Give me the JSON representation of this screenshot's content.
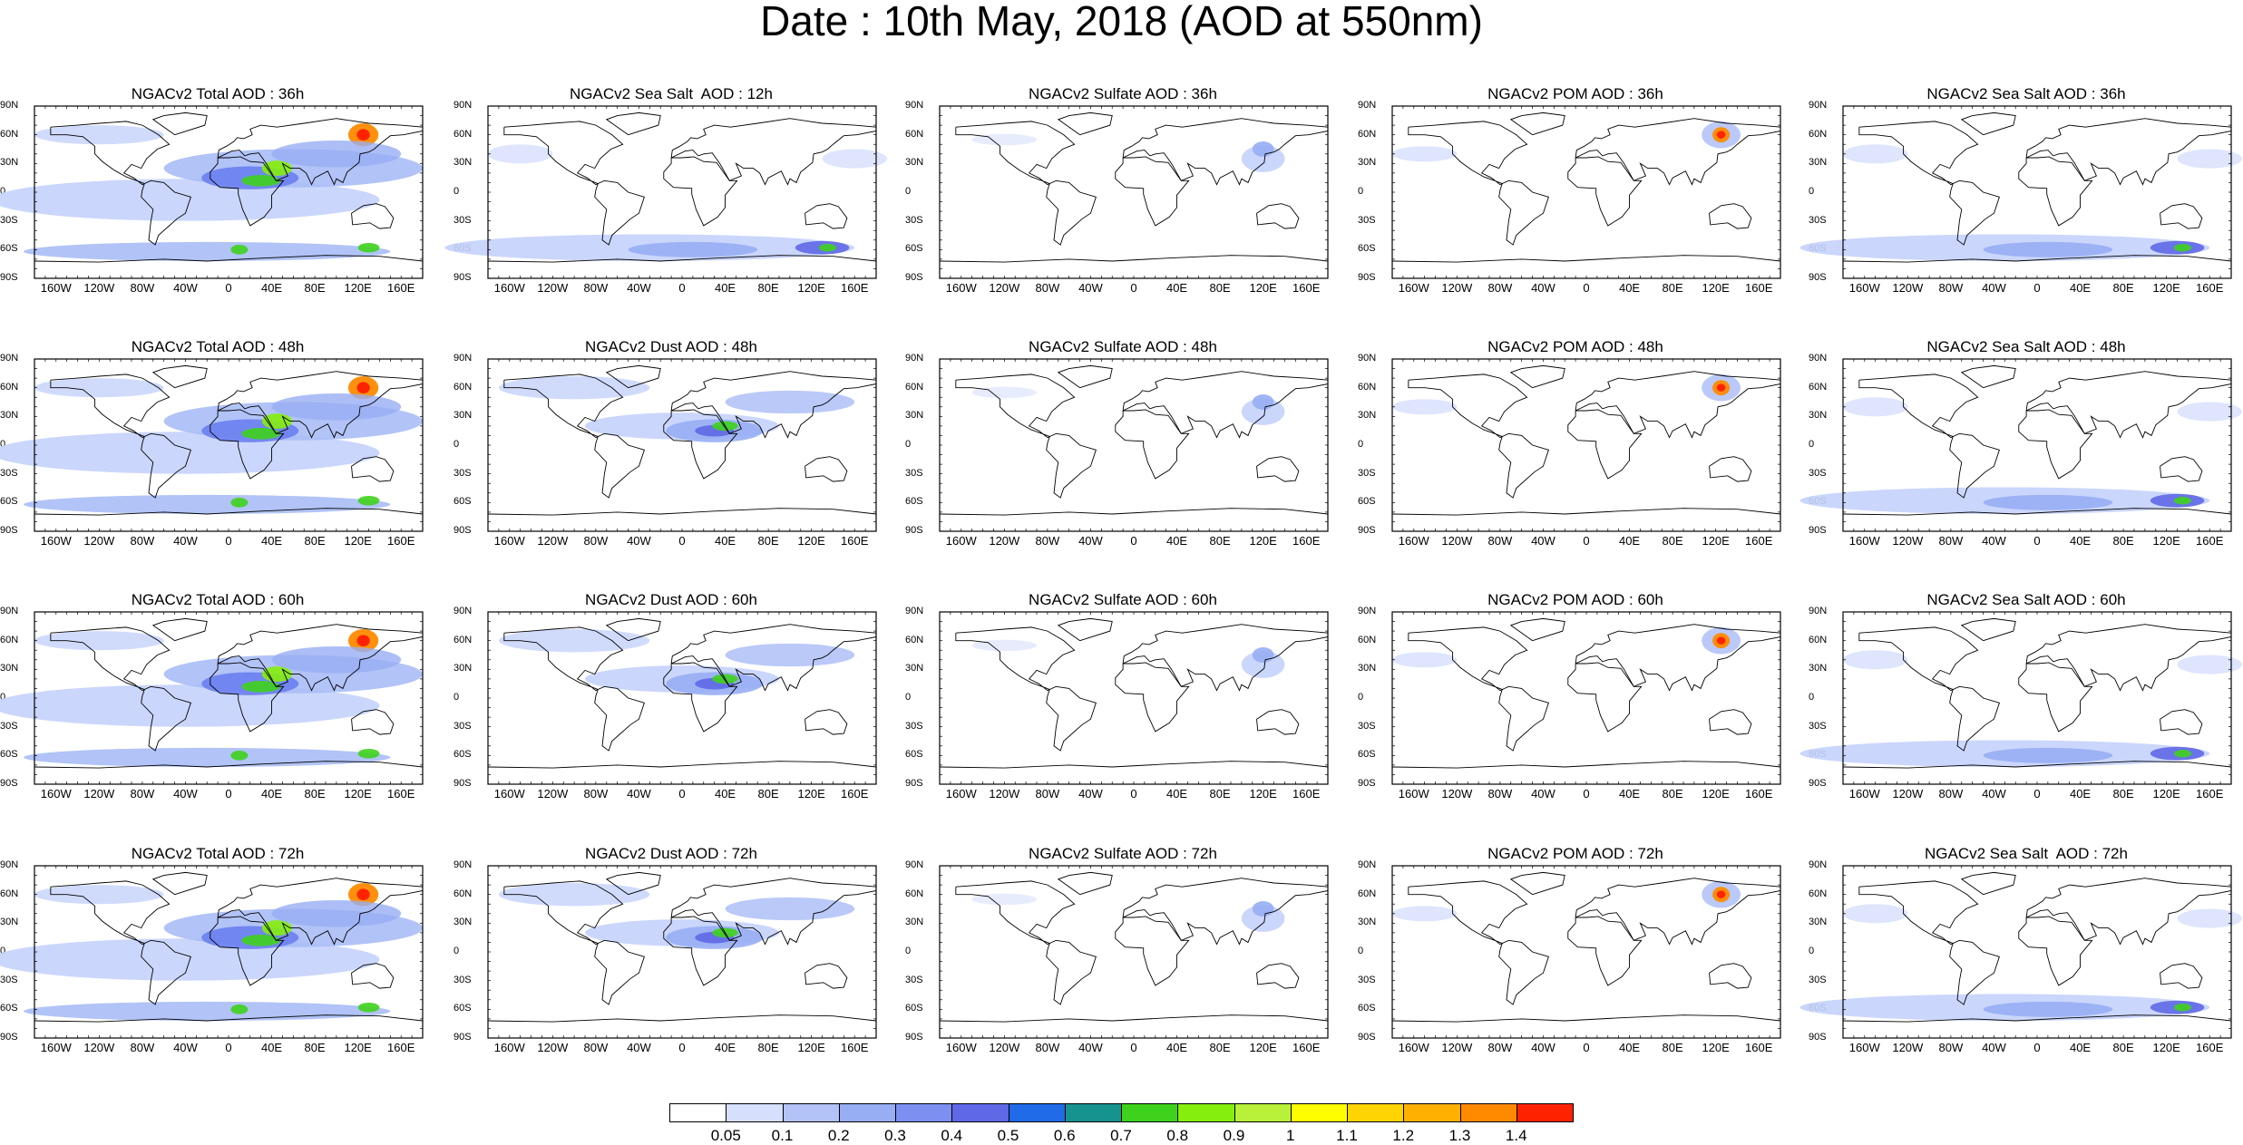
{
  "title": "Date : 10th May, 2018 (AOD at 550nm)",
  "lat_labels": [
    "90N",
    "60N",
    "30N",
    "0",
    "30S",
    "60S",
    "90S"
  ],
  "lon_labels": [
    "160W",
    "120W",
    "80W",
    "40W",
    "0",
    "40E",
    "80E",
    "120E",
    "160E"
  ],
  "rows": [
    [
      "NGACv2 Total AOD : 36h",
      "NGACv2 Sea Salt  AOD : 12h",
      "NGACv2 Sulfate AOD : 36h",
      "NGACv2 POM AOD : 36h",
      "NGACv2 Sea Salt AOD : 36h"
    ],
    [
      "NGACv2 Total AOD : 48h",
      "NGACv2 Dust AOD : 48h",
      "NGACv2 Sulfate AOD : 48h",
      "NGACv2 POM AOD : 48h",
      "NGACv2 Sea Salt AOD : 48h"
    ],
    [
      "NGACv2 Total AOD : 60h",
      "NGACv2 Dust AOD : 60h",
      "NGACv2 Sulfate AOD : 60h",
      "NGACv2 POM AOD : 60h",
      "NGACv2 Sea Salt AOD : 60h"
    ],
    [
      "NGACv2 Total AOD : 72h",
      "NGACv2 Dust AOD : 72h",
      "NGACv2 Sulfate AOD : 72h",
      "NGACv2 POM AOD : 72h",
      "NGACv2 Sea Salt  AOD : 72h"
    ]
  ],
  "colorbar": {
    "labels": [
      "0.05",
      "0.1",
      "0.2",
      "0.3",
      "0.4",
      "0.5",
      "0.6",
      "0.7",
      "0.8",
      "0.9",
      "1",
      "1.1",
      "1.2",
      "1.3",
      "1.4"
    ],
    "colors": [
      "#ffffff",
      "#d6dffc",
      "#b3c3f7",
      "#98aef4",
      "#7d8ff0",
      "#5f68e6",
      "#1f6be8",
      "#17938f",
      "#3fd21c",
      "#85ee0c",
      "#b9f13a",
      "#fffe00",
      "#ffd400",
      "#ffb000",
      "#ff8a00",
      "#ff2200"
    ]
  },
  "colors": {
    "land_outline": "#000000",
    "low_aod": "#c4d2fb",
    "mid_aod": "#8aa0f2"
  }
}
